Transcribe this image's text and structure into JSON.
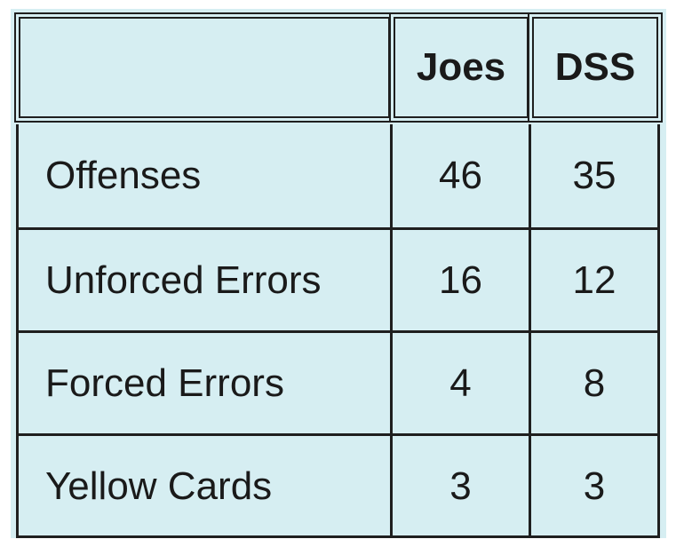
{
  "table": {
    "headers": [
      "",
      "Joes",
      "DSS"
    ],
    "rows": [
      {
        "label": "Offenses",
        "joes": "46",
        "dss": "35"
      },
      {
        "label": "Unforced Errors",
        "joes": "16",
        "dss": "12"
      },
      {
        "label": "Forced Errors",
        "joes": "4",
        "dss": "8"
      },
      {
        "label": "Yellow Cards",
        "joes": "3",
        "dss": "3"
      }
    ]
  },
  "colors": {
    "cell_background": "#d6eef2",
    "border": "#1f1f1f",
    "text": "#1a1a1a"
  }
}
